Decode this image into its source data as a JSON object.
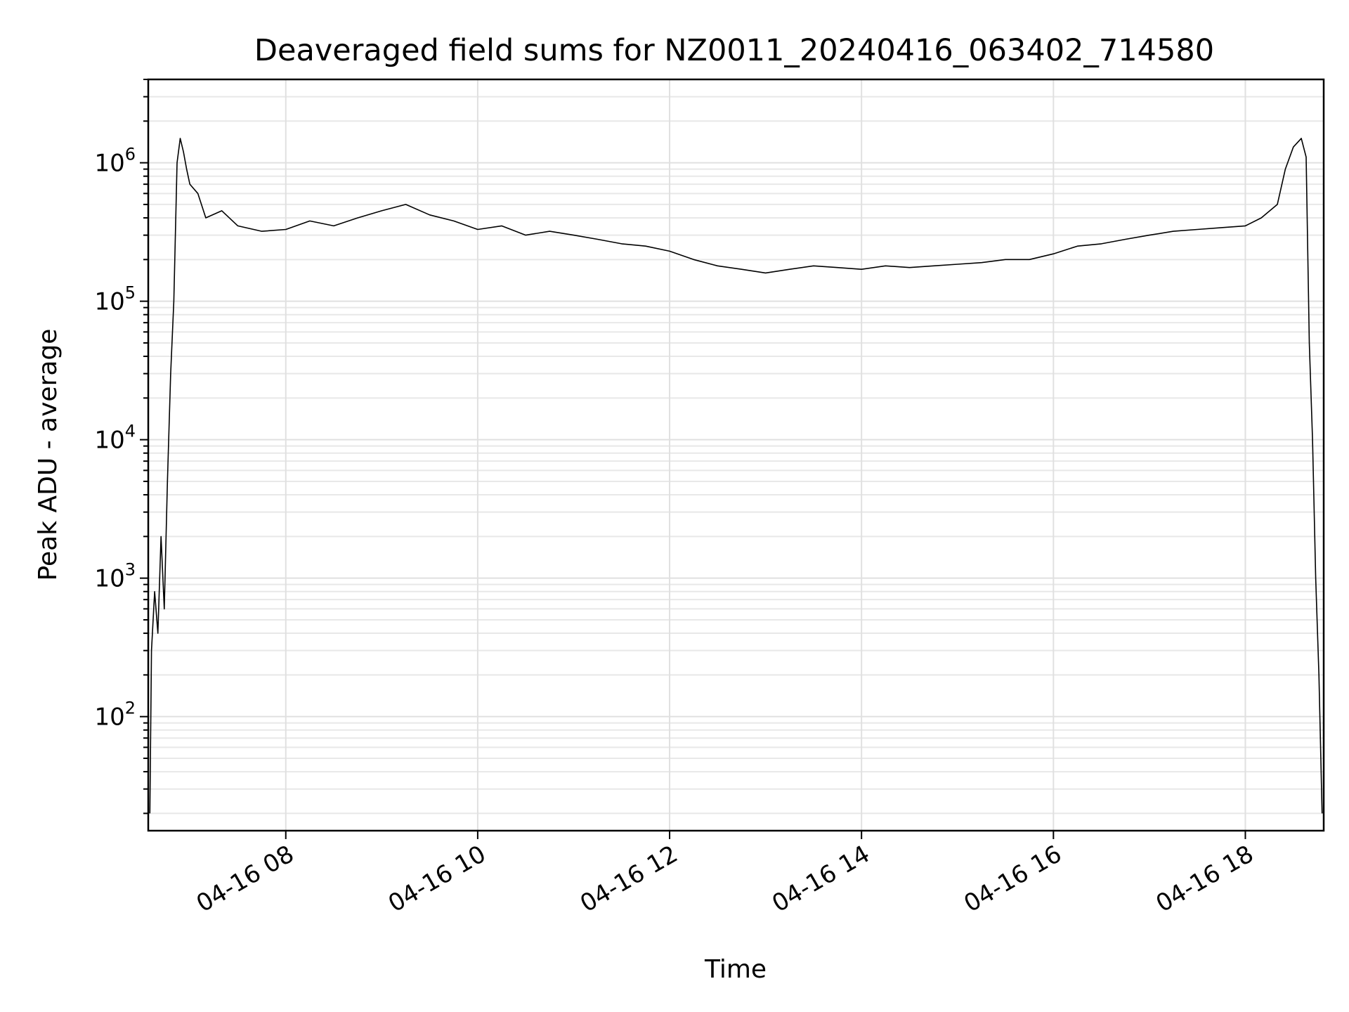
{
  "chart_data": {
    "type": "line",
    "title": "Deaveraged field sums for NZ0011_20240416_063402_714580",
    "xlabel": "Time",
    "ylabel": "Peak ADU - average",
    "yscale": "log",
    "grid": true,
    "line_color": "#000000",
    "xlim": [
      "2024-04-16 06:34",
      "2024-04-16 18:49"
    ],
    "ylim": [
      15,
      4000000
    ],
    "x_ticks": [
      {
        "x": "2024-04-16 08:00",
        "label": "04-16 08"
      },
      {
        "x": "2024-04-16 10:00",
        "label": "04-16 10"
      },
      {
        "x": "2024-04-16 12:00",
        "label": "04-16 12"
      },
      {
        "x": "2024-04-16 14:00",
        "label": "04-16 14"
      },
      {
        "x": "2024-04-16 16:00",
        "label": "04-16 16"
      },
      {
        "x": "2024-04-16 18:00",
        "label": "04-16 18"
      }
    ],
    "y_ticks": [
      {
        "value": 100,
        "base": "10",
        "exp": "2"
      },
      {
        "value": 1000,
        "base": "10",
        "exp": "3"
      },
      {
        "value": 10000,
        "base": "10",
        "exp": "4"
      },
      {
        "value": 100000,
        "base": "10",
        "exp": "5"
      },
      {
        "value": 1000000,
        "base": "10",
        "exp": "6"
      }
    ],
    "series": [
      {
        "x": [
          "2024-04-16 06:35",
          "2024-04-16 06:36",
          "2024-04-16 06:38",
          "2024-04-16 06:40",
          "2024-04-16 06:42",
          "2024-04-16 06:44",
          "2024-04-16 06:46",
          "2024-04-16 06:48",
          "2024-04-16 06:50",
          "2024-04-16 06:52",
          "2024-04-16 06:54",
          "2024-04-16 06:56",
          "2024-04-16 06:58",
          "2024-04-16 07:00",
          "2024-04-16 07:05",
          "2024-04-16 07:10",
          "2024-04-16 07:20",
          "2024-04-16 07:30",
          "2024-04-16 07:45",
          "2024-04-16 08:00",
          "2024-04-16 08:15",
          "2024-04-16 08:30",
          "2024-04-16 08:45",
          "2024-04-16 09:00",
          "2024-04-16 09:15",
          "2024-04-16 09:30",
          "2024-04-16 09:45",
          "2024-04-16 10:00",
          "2024-04-16 10:15",
          "2024-04-16 10:30",
          "2024-04-16 10:45",
          "2024-04-16 11:00",
          "2024-04-16 11:15",
          "2024-04-16 11:30",
          "2024-04-16 11:45",
          "2024-04-16 12:00",
          "2024-04-16 12:15",
          "2024-04-16 12:30",
          "2024-04-16 12:45",
          "2024-04-16 13:00",
          "2024-04-16 13:15",
          "2024-04-16 13:30",
          "2024-04-16 13:45",
          "2024-04-16 14:00",
          "2024-04-16 14:15",
          "2024-04-16 14:30",
          "2024-04-16 14:45",
          "2024-04-16 15:00",
          "2024-04-16 15:15",
          "2024-04-16 15:30",
          "2024-04-16 15:45",
          "2024-04-16 16:00",
          "2024-04-16 16:15",
          "2024-04-16 16:30",
          "2024-04-16 16:45",
          "2024-04-16 17:00",
          "2024-04-16 17:15",
          "2024-04-16 17:30",
          "2024-04-16 17:45",
          "2024-04-16 18:00",
          "2024-04-16 18:10",
          "2024-04-16 18:20",
          "2024-04-16 18:25",
          "2024-04-16 18:30",
          "2024-04-16 18:35",
          "2024-04-16 18:38",
          "2024-04-16 18:40",
          "2024-04-16 18:42",
          "2024-04-16 18:44",
          "2024-04-16 18:46",
          "2024-04-16 18:48"
        ],
        "values": [
          20,
          300,
          800,
          400,
          2000,
          600,
          5000,
          30000,
          100000,
          1000000,
          1500000,
          1200000,
          900000,
          700000,
          600000,
          400000,
          450000,
          350000,
          320000,
          330000,
          380000,
          350000,
          400000,
          450000,
          500000,
          420000,
          380000,
          330000,
          350000,
          300000,
          320000,
          300000,
          280000,
          260000,
          250000,
          230000,
          200000,
          180000,
          170000,
          160000,
          170000,
          180000,
          175000,
          170000,
          180000,
          175000,
          180000,
          185000,
          190000,
          200000,
          200000,
          220000,
          250000,
          260000,
          280000,
          300000,
          320000,
          330000,
          340000,
          350000,
          400000,
          500000,
          900000,
          1300000,
          1500000,
          1100000,
          50000,
          10000,
          1000,
          200,
          20
        ]
      }
    ]
  }
}
